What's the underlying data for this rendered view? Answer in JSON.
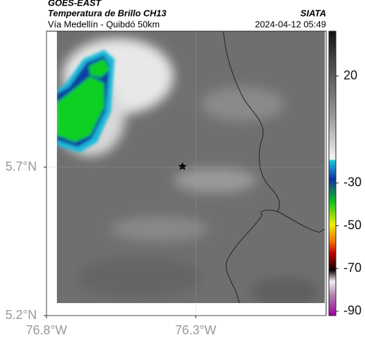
{
  "header": {
    "title": "GOES-EAST",
    "subtitle": "Temperatura de Brillo CH13",
    "location": "Vía Medellín - Quibdó 50km",
    "source": "SIATA",
    "timestamp": "2024-04-12 05:49"
  },
  "map": {
    "xlim": [
      -76.8,
      -75.863
    ],
    "ylim": [
      5.2,
      6.158
    ],
    "xticks": [
      {
        "value": -76.8,
        "label": "76.8°W"
      },
      {
        "value": -76.3,
        "label": "76.3°W"
      }
    ],
    "yticks": [
      {
        "value": 5.7,
        "label": "5.7°N"
      },
      {
        "value": 5.2,
        "label": "5.2°N"
      }
    ]
  },
  "colorbar": {
    "lim": [
      41,
      -92
    ],
    "ticks": [
      20,
      -30,
      -50,
      -70,
      -90
    ]
  }
}
